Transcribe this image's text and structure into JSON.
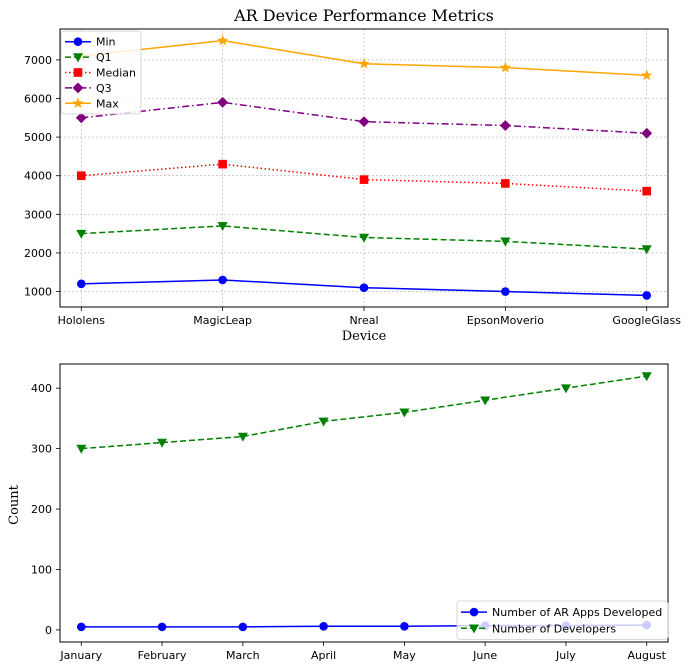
{
  "chart_data": [
    {
      "type": "line",
      "title": "AR Device Performance Metrics",
      "xlabel": "Device",
      "ylabel": "",
      "categories": [
        "Hololens",
        "MagicLeap",
        "Nreal",
        "EpsonMoverio",
        "GoogleGlass"
      ],
      "ylim": [
        600,
        7800
      ],
      "yticks": [
        1000,
        2000,
        3000,
        4000,
        5000,
        6000,
        7000
      ],
      "grid": true,
      "legend_position": "top-left",
      "series": [
        {
          "name": "Min",
          "values": [
            1200,
            1300,
            1100,
            1000,
            900
          ],
          "color": "#0000ff",
          "linestyle": "solid",
          "marker": "circle"
        },
        {
          "name": "Q1",
          "values": [
            2500,
            2700,
            2400,
            2300,
            2100
          ],
          "color": "#008000",
          "linestyle": "dashed",
          "marker": "triangle-down"
        },
        {
          "name": "Median",
          "values": [
            4000,
            4300,
            3900,
            3800,
            3600
          ],
          "color": "#ff0000",
          "linestyle": "dotted",
          "marker": "square"
        },
        {
          "name": "Q3",
          "values": [
            5500,
            5900,
            5400,
            5300,
            5100
          ],
          "color": "#800080",
          "linestyle": "dashdot",
          "marker": "diamond"
        },
        {
          "name": "Max",
          "values": [
            7100,
            7500,
            6900,
            6800,
            6600
          ],
          "color": "#ffa500",
          "linestyle": "solid",
          "marker": "star"
        }
      ]
    },
    {
      "type": "line",
      "title": "",
      "xlabel": "",
      "ylabel": "Count",
      "categories": [
        "January",
        "February",
        "March",
        "April",
        "May",
        "June",
        "July",
        "August"
      ],
      "ylim": [
        -20,
        440
      ],
      "yticks": [
        0,
        100,
        200,
        300,
        400
      ],
      "grid": false,
      "legend_position": "bottom-right",
      "series": [
        {
          "name": "Number of AR Apps Developed",
          "values": [
            5,
            5,
            5,
            6,
            6,
            7,
            7,
            8
          ],
          "color": "#0000ff",
          "linestyle": "solid",
          "marker": "circle"
        },
        {
          "name": "Number of Developers",
          "values": [
            300,
            310,
            320,
            345,
            360,
            380,
            400,
            420
          ],
          "color": "#008000",
          "linestyle": "dashed",
          "marker": "triangle-down"
        }
      ]
    }
  ]
}
